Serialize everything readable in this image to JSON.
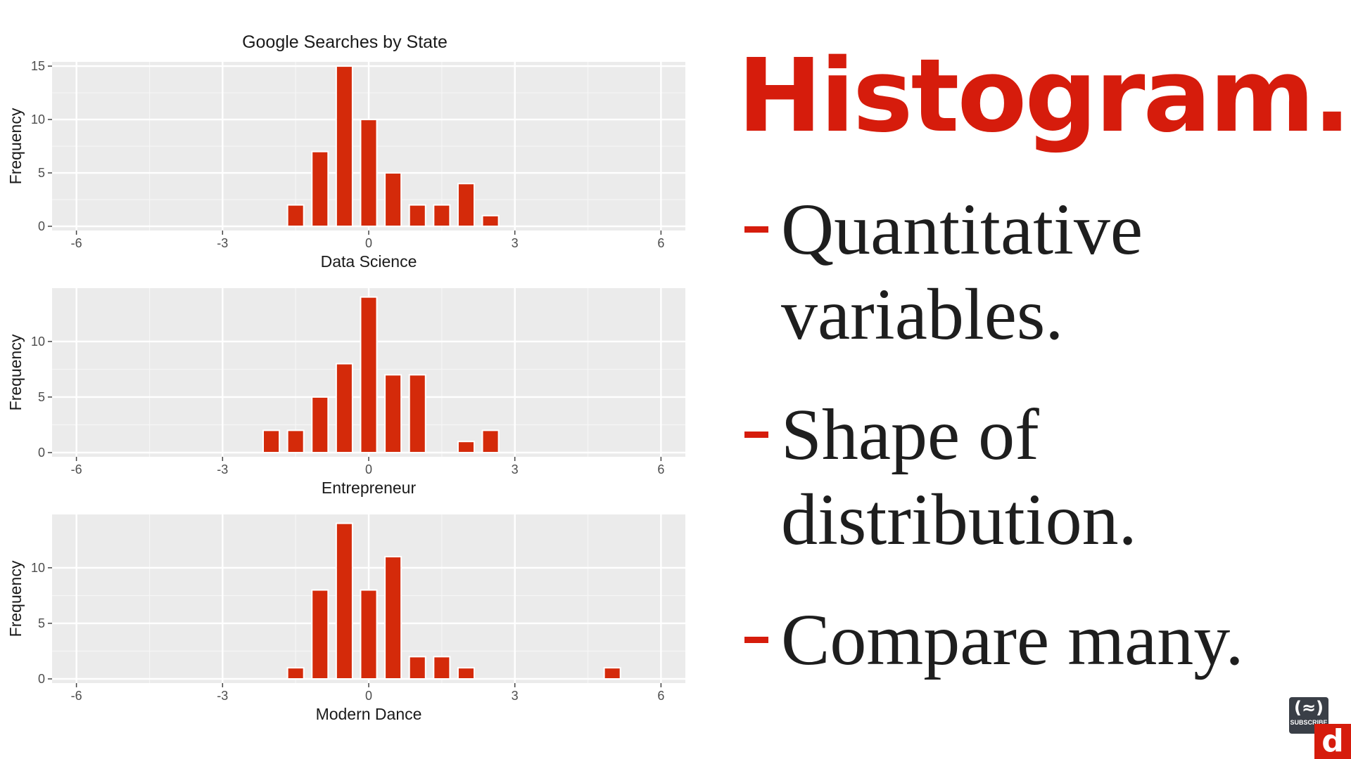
{
  "slide": {
    "title": "Histogram.",
    "bullets": [
      "Quantitative variables.",
      "Shape of distribution.",
      "Compare many."
    ],
    "bullet_lines": [
      [
        "Quantitative",
        "variables."
      ],
      [
        "Shape of",
        "distribution."
      ],
      [
        "Compare many."
      ]
    ],
    "accent_color": "#d61c0c"
  },
  "badge": {
    "label": "SUBSCRIBE",
    "icon": "code-flame-icon"
  },
  "logo": {
    "text": "d"
  },
  "chart_data": {
    "type": "bar",
    "title": "Google Searches by State",
    "bar_color": "#d42a0a",
    "panel_background": "#ebebeb",
    "grid": true,
    "bin_width": 0.333,
    "facets": [
      {
        "name": "Data Science",
        "xlabel": "Data Science",
        "ylabel": "Frequency",
        "xlim": [
          -6.5,
          6.5
        ],
        "ylim": [
          0,
          15.4
        ],
        "xticks": [
          -6,
          -3,
          0,
          3,
          6
        ],
        "yticks": [
          0,
          5,
          10,
          15
        ],
        "bins": [
          {
            "x": -1.5,
            "count": 2
          },
          {
            "x": -1.0,
            "count": 7
          },
          {
            "x": -0.5,
            "count": 15
          },
          {
            "x": 0.0,
            "count": 10
          },
          {
            "x": 0.5,
            "count": 5
          },
          {
            "x": 1.0,
            "count": 2
          },
          {
            "x": 1.5,
            "count": 2
          },
          {
            "x": 2.0,
            "count": 4
          },
          {
            "x": 2.5,
            "count": 1
          }
        ]
      },
      {
        "name": "Entrepreneur",
        "xlabel": "Entrepreneur",
        "ylabel": "Frequency",
        "xlim": [
          -6.5,
          6.5
        ],
        "ylim": [
          0,
          14.8
        ],
        "xticks": [
          -6,
          -3,
          0,
          3,
          6
        ],
        "yticks": [
          0,
          5,
          10
        ],
        "bins": [
          {
            "x": -2.0,
            "count": 2
          },
          {
            "x": -1.5,
            "count": 2
          },
          {
            "x": -1.0,
            "count": 5
          },
          {
            "x": -0.5,
            "count": 8
          },
          {
            "x": 0.0,
            "count": 14
          },
          {
            "x": 0.5,
            "count": 7
          },
          {
            "x": 1.0,
            "count": 7
          },
          {
            "x": 2.0,
            "count": 1
          },
          {
            "x": 2.5,
            "count": 2
          }
        ]
      },
      {
        "name": "Modern Dance",
        "xlabel": "Modern Dance",
        "ylabel": "Frequency",
        "xlim": [
          -6.5,
          6.5
        ],
        "ylim": [
          0,
          14.8
        ],
        "xticks": [
          -6,
          -3,
          0,
          3,
          6
        ],
        "yticks": [
          0,
          5,
          10
        ],
        "bins": [
          {
            "x": -1.5,
            "count": 1
          },
          {
            "x": -1.0,
            "count": 8
          },
          {
            "x": -0.5,
            "count": 14
          },
          {
            "x": 0.0,
            "count": 8
          },
          {
            "x": 0.5,
            "count": 11
          },
          {
            "x": 1.0,
            "count": 2
          },
          {
            "x": 1.5,
            "count": 2
          },
          {
            "x": 2.0,
            "count": 1
          },
          {
            "x": 5.0,
            "count": 1
          }
        ]
      }
    ]
  }
}
